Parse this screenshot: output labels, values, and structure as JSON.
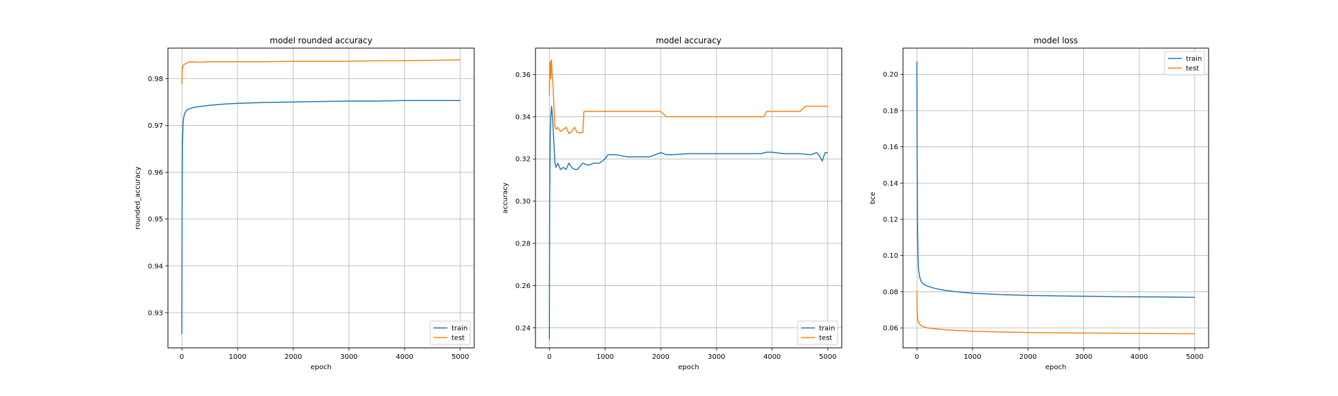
{
  "chart_data": [
    {
      "type": "line",
      "title": "model rounded accuracy",
      "xlabel": "epoch",
      "ylabel": "rounded_accuracy",
      "xlim": [
        -250,
        5250
      ],
      "ylim": [
        0.9225,
        0.9865
      ],
      "xticks": [
        0,
        1000,
        2000,
        3000,
        4000,
        5000
      ],
      "yticks": [
        0.93,
        0.94,
        0.95,
        0.96,
        0.97,
        0.98
      ],
      "ytick_labels": [
        "0.93",
        "0.94",
        "0.95",
        "0.96",
        "0.97",
        "0.98"
      ],
      "grid": true,
      "legend": "lower-right",
      "series": [
        {
          "name": "train",
          "color": "#1f77b4",
          "x": [
            0,
            5,
            10,
            20,
            30,
            50,
            80,
            120,
            200,
            300,
            500,
            800,
            1000,
            1500,
            2000,
            2500,
            3000,
            3500,
            4000,
            4500,
            5000
          ],
          "y": [
            0.9255,
            0.955,
            0.965,
            0.97,
            0.9715,
            0.9725,
            0.9732,
            0.9735,
            0.9738,
            0.974,
            0.9743,
            0.9746,
            0.9747,
            0.9749,
            0.975,
            0.9751,
            0.9752,
            0.9752,
            0.9753,
            0.9753,
            0.9753
          ]
        },
        {
          "name": "test",
          "color": "#ff7f0e",
          "x": [
            0,
            5,
            10,
            20,
            40,
            80,
            150,
            300,
            500,
            1000,
            1500,
            2000,
            2500,
            3000,
            3500,
            4000,
            4500,
            5000
          ],
          "y": [
            0.9788,
            0.9815,
            0.9822,
            0.9828,
            0.983,
            0.9833,
            0.9836,
            0.9835,
            0.9836,
            0.9836,
            0.9836,
            0.9837,
            0.9837,
            0.9837,
            0.9838,
            0.9838,
            0.9839,
            0.984
          ]
        }
      ]
    },
    {
      "type": "line",
      "title": "model accuracy",
      "xlabel": "epoch",
      "ylabel": "accuracy",
      "xlim": [
        -250,
        5250
      ],
      "ylim": [
        0.2305,
        0.3725
      ],
      "xticks": [
        0,
        1000,
        2000,
        3000,
        4000,
        5000
      ],
      "yticks": [
        0.24,
        0.26,
        0.28,
        0.3,
        0.32,
        0.34,
        0.36
      ],
      "ytick_labels": [
        "0.24",
        "0.26",
        "0.28",
        "0.30",
        "0.32",
        "0.34",
        "0.36"
      ],
      "grid": true,
      "legend": "lower-right",
      "series": [
        {
          "name": "train",
          "color": "#1f77b4",
          "x": [
            0,
            5,
            15,
            25,
            40,
            60,
            80,
            100,
            120,
            150,
            200,
            250,
            300,
            350,
            400,
            450,
            500,
            600,
            700,
            800,
            900,
            1000,
            1050,
            1200,
            1400,
            1500,
            1600,
            1800,
            2000,
            2100,
            2200,
            2500,
            3000,
            3500,
            3800,
            3900,
            4000,
            4200,
            4500,
            4700,
            4800,
            4850,
            4900,
            4950,
            5000
          ],
          "y": [
            0.2345,
            0.3,
            0.332,
            0.34,
            0.345,
            0.338,
            0.328,
            0.318,
            0.316,
            0.318,
            0.315,
            0.316,
            0.315,
            0.318,
            0.316,
            0.315,
            0.315,
            0.318,
            0.317,
            0.318,
            0.318,
            0.32,
            0.322,
            0.322,
            0.321,
            0.321,
            0.321,
            0.321,
            0.323,
            0.322,
            0.322,
            0.3225,
            0.3225,
            0.3225,
            0.3225,
            0.3232,
            0.3232,
            0.3225,
            0.3225,
            0.322,
            0.323,
            0.3215,
            0.319,
            0.323,
            0.323
          ]
        },
        {
          "name": "test",
          "color": "#ff7f0e",
          "x": [
            0,
            5,
            15,
            25,
            35,
            50,
            65,
            80,
            100,
            120,
            150,
            200,
            250,
            300,
            350,
            400,
            450,
            500,
            550,
            600,
            620,
            1000,
            1500,
            2000,
            2100,
            2150,
            2500,
            3000,
            3500,
            3850,
            3900,
            4000,
            4500,
            4600,
            4650,
            5000
          ],
          "y": [
            0.35,
            0.363,
            0.366,
            0.358,
            0.367,
            0.36,
            0.355,
            0.346,
            0.335,
            0.334,
            0.335,
            0.333,
            0.334,
            0.335,
            0.332,
            0.333,
            0.335,
            0.3325,
            0.3325,
            0.3325,
            0.3425,
            0.3425,
            0.3425,
            0.3425,
            0.34,
            0.34,
            0.34,
            0.34,
            0.34,
            0.34,
            0.3425,
            0.3425,
            0.3425,
            0.345,
            0.345,
            0.345
          ]
        }
      ]
    },
    {
      "type": "line",
      "title": "model loss",
      "xlabel": "epoch",
      "ylabel": "bce",
      "xlim": [
        -250,
        5250
      ],
      "ylim": [
        0.049,
        0.2145
      ],
      "xticks": [
        0,
        1000,
        2000,
        3000,
        4000,
        5000
      ],
      "yticks": [
        0.06,
        0.08,
        0.1,
        0.12,
        0.14,
        0.16,
        0.18,
        0.2
      ],
      "ytick_labels": [
        "0.06",
        "0.08",
        "0.10",
        "0.12",
        "0.14",
        "0.16",
        "0.18",
        "0.20"
      ],
      "grid": true,
      "legend": "upper-right",
      "series": [
        {
          "name": "train",
          "color": "#1f77b4",
          "x": [
            0,
            5,
            10,
            20,
            30,
            50,
            80,
            120,
            200,
            300,
            500,
            800,
            1000,
            1500,
            2000,
            2500,
            3000,
            3500,
            4000,
            4500,
            5000
          ],
          "y": [
            0.207,
            0.15,
            0.12,
            0.1,
            0.092,
            0.088,
            0.0855,
            0.0842,
            0.083,
            0.082,
            0.0808,
            0.0797,
            0.0792,
            0.0784,
            0.078,
            0.0777,
            0.0775,
            0.0773,
            0.0772,
            0.0771,
            0.0769
          ]
        },
        {
          "name": "test",
          "color": "#ff7f0e",
          "x": [
            0,
            5,
            10,
            20,
            30,
            50,
            80,
            120,
            200,
            300,
            500,
            800,
            1000,
            1500,
            2000,
            2500,
            3000,
            3500,
            4000,
            4500,
            5000
          ],
          "y": [
            0.08,
            0.07,
            0.066,
            0.064,
            0.063,
            0.062,
            0.0612,
            0.0606,
            0.06,
            0.0596,
            0.059,
            0.0585,
            0.0582,
            0.0578,
            0.0575,
            0.0573,
            0.0572,
            0.0571,
            0.057,
            0.0569,
            0.0568
          ]
        }
      ]
    }
  ]
}
